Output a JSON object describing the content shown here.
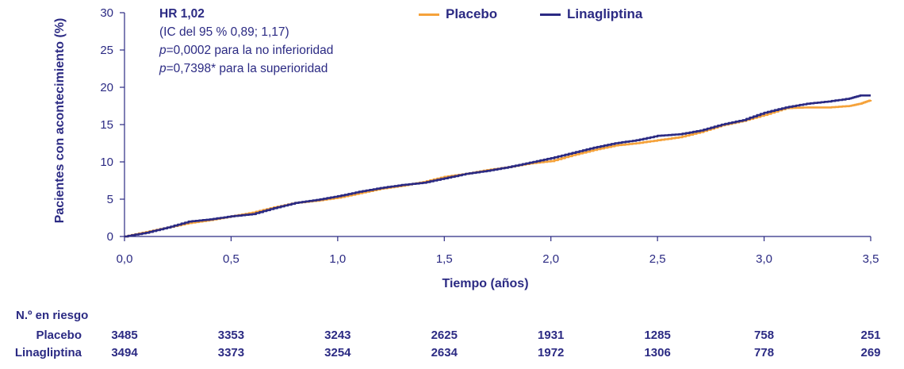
{
  "chart_data": {
    "type": "line",
    "title": "",
    "xlabel": "Tiempo (años)",
    "ylabel": "Pacientes con acontecimiento (%)",
    "xlim": [
      0,
      3.5
    ],
    "ylim": [
      0,
      30
    ],
    "x_ticks": [
      "0,0",
      "0,5",
      "1,0",
      "1,5",
      "2,0",
      "2,5",
      "3,0",
      "3,5"
    ],
    "x_tick_values": [
      0,
      0.5,
      1.0,
      1.5,
      2.0,
      2.5,
      3.0,
      3.5
    ],
    "y_ticks": [
      "0",
      "5",
      "10",
      "15",
      "20",
      "25",
      "30"
    ],
    "y_tick_values": [
      0,
      5,
      10,
      15,
      20,
      25,
      30
    ],
    "grid": false,
    "legend_position": "top",
    "series": [
      {
        "name": "Placebo",
        "color": "#f5a23a",
        "points": [
          [
            0,
            0
          ],
          [
            0.1,
            0.6
          ],
          [
            0.2,
            1.2
          ],
          [
            0.3,
            1.8
          ],
          [
            0.4,
            2.2
          ],
          [
            0.5,
            2.7
          ],
          [
            0.6,
            3.2
          ],
          [
            0.7,
            3.9
          ],
          [
            0.8,
            4.5
          ],
          [
            0.9,
            4.8
          ],
          [
            1.0,
            5.2
          ],
          [
            1.1,
            5.8
          ],
          [
            1.2,
            6.4
          ],
          [
            1.3,
            6.8
          ],
          [
            1.4,
            7.3
          ],
          [
            1.5,
            8.0
          ],
          [
            1.6,
            8.4
          ],
          [
            1.7,
            8.9
          ],
          [
            1.8,
            9.3
          ],
          [
            1.9,
            9.8
          ],
          [
            2.0,
            10.1
          ],
          [
            2.1,
            10.9
          ],
          [
            2.2,
            11.6
          ],
          [
            2.3,
            12.2
          ],
          [
            2.4,
            12.5
          ],
          [
            2.5,
            12.9
          ],
          [
            2.6,
            13.3
          ],
          [
            2.7,
            14.0
          ],
          [
            2.8,
            14.9
          ],
          [
            2.9,
            15.5
          ],
          [
            3.0,
            16.3
          ],
          [
            3.1,
            17.2
          ],
          [
            3.2,
            17.3
          ],
          [
            3.3,
            17.3
          ],
          [
            3.4,
            17.5
          ],
          [
            3.45,
            17.8
          ],
          [
            3.5,
            18.3
          ]
        ]
      },
      {
        "name": "Linagliptina",
        "color": "#2b2a83",
        "points": [
          [
            0,
            0
          ],
          [
            0.1,
            0.5
          ],
          [
            0.2,
            1.2
          ],
          [
            0.3,
            2.0
          ],
          [
            0.4,
            2.3
          ],
          [
            0.5,
            2.7
          ],
          [
            0.6,
            3.0
          ],
          [
            0.7,
            3.8
          ],
          [
            0.8,
            4.5
          ],
          [
            0.9,
            4.9
          ],
          [
            1.0,
            5.4
          ],
          [
            1.1,
            6.0
          ],
          [
            1.2,
            6.5
          ],
          [
            1.3,
            6.9
          ],
          [
            1.4,
            7.2
          ],
          [
            1.5,
            7.8
          ],
          [
            1.6,
            8.4
          ],
          [
            1.7,
            8.8
          ],
          [
            1.8,
            9.3
          ],
          [
            1.9,
            9.9
          ],
          [
            2.0,
            10.5
          ],
          [
            2.1,
            11.2
          ],
          [
            2.2,
            11.9
          ],
          [
            2.3,
            12.5
          ],
          [
            2.4,
            12.9
          ],
          [
            2.5,
            13.5
          ],
          [
            2.6,
            13.7
          ],
          [
            2.7,
            14.2
          ],
          [
            2.8,
            15.0
          ],
          [
            2.9,
            15.6
          ],
          [
            3.0,
            16.6
          ],
          [
            3.1,
            17.3
          ],
          [
            3.2,
            17.8
          ],
          [
            3.3,
            18.1
          ],
          [
            3.4,
            18.5
          ],
          [
            3.45,
            18.9
          ],
          [
            3.5,
            18.9
          ]
        ]
      }
    ]
  },
  "annotation": {
    "hr": "HR 1,02",
    "ci": "(IC del 95 % 0,89; 1,17)",
    "p1_symbol": "p",
    "p1_text": "=0,0002 para la no inferioridad",
    "p2_symbol": "p",
    "p2_text": "=0,7398* para la superioridad"
  },
  "legend": {
    "placebo": "Placebo",
    "linagliptina": "Linagliptina"
  },
  "risk_table": {
    "title": "N.º en riesgo",
    "rows": [
      {
        "label": "Placebo",
        "values": [
          "3485",
          "3353",
          "3243",
          "2625",
          "1931",
          "1285",
          "758",
          "251"
        ]
      },
      {
        "label": "Linagliptina",
        "values": [
          "3494",
          "3373",
          "3254",
          "2634",
          "1972",
          "1306",
          "778",
          "269"
        ]
      }
    ]
  }
}
